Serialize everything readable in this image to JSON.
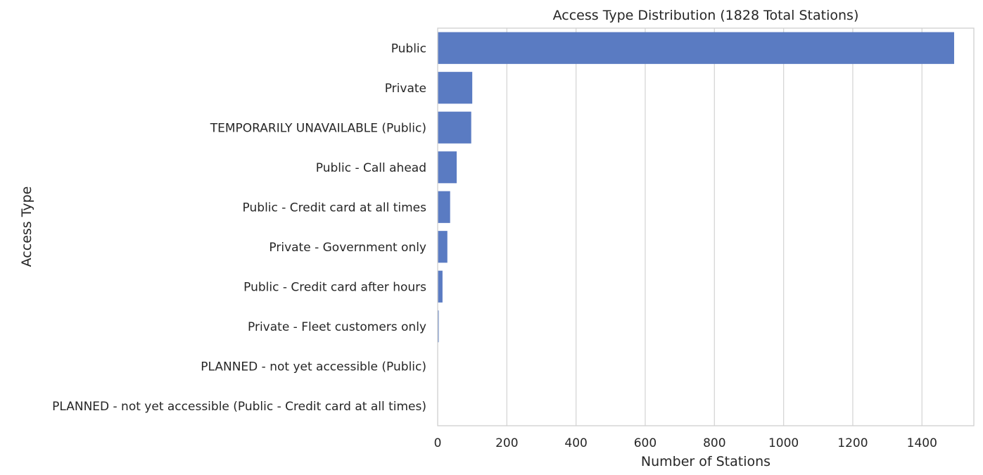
{
  "chart_data": {
    "type": "bar",
    "orientation": "horizontal",
    "title": "Access Type Distribution (1828 Total Stations)",
    "xlabel": "Number of Stations",
    "ylabel": "Access Type",
    "xlim": [
      0,
      1550
    ],
    "x_ticks": [
      0,
      200,
      400,
      600,
      800,
      1000,
      1200,
      1400
    ],
    "grid": true,
    "bar_color": "#5a7bc2",
    "categories": [
      "Public",
      "Private",
      "TEMPORARILY UNAVAILABLE (Public)",
      "Public - Call ahead",
      "Public - Credit card at all times",
      "Private - Government only",
      "Public - Credit card after hours",
      "Private - Fleet customers only",
      "PLANNED - not yet accessible (Public)",
      "PLANNED - not yet accessible (Public - Credit card at all times)"
    ],
    "values": [
      1493,
      100,
      97,
      55,
      36,
      28,
      14,
      3,
      1,
      1
    ]
  }
}
